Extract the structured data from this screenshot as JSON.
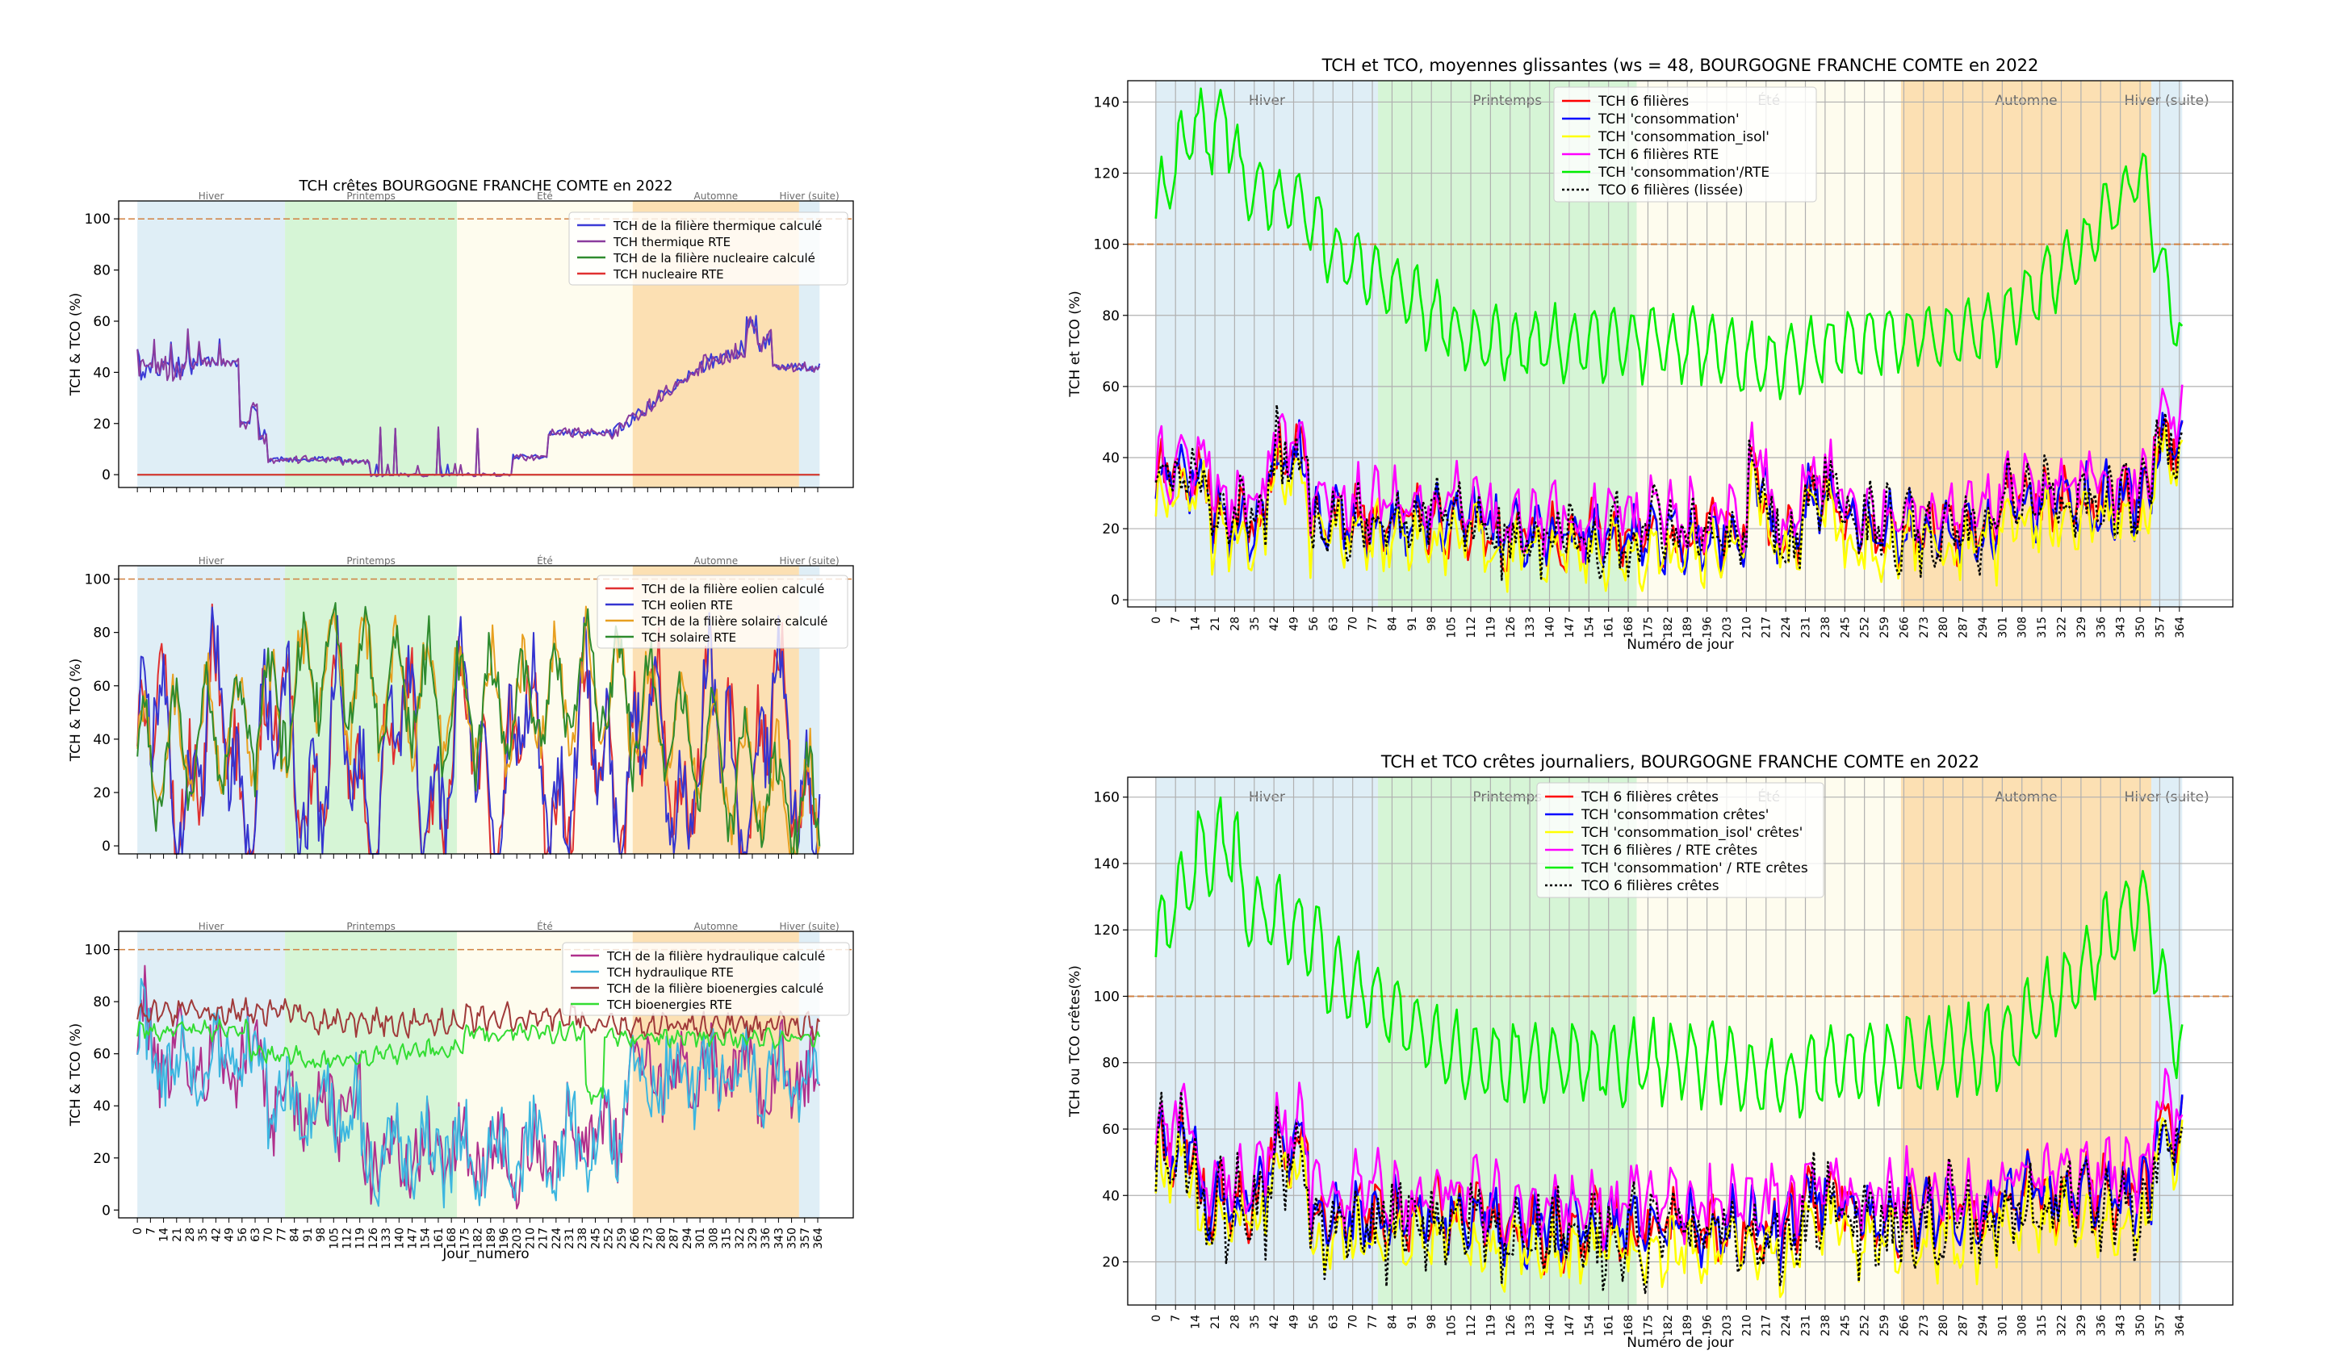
{
  "figure_left_title": "TCH crêtes BOURGOGNE FRANCHE COMTE en 2022",
  "seasons": [
    {
      "name": "Hiver",
      "start": 0,
      "end": 79,
      "color": "#d4e8f3"
    },
    {
      "name": "Printemps",
      "start": 79,
      "end": 171,
      "color": "#c8f2c8"
    },
    {
      "name": "Été",
      "start": 171,
      "end": 265,
      "color": "#fefbe8"
    },
    {
      "name": "Automne",
      "start": 265,
      "end": 354,
      "color": "#fbd59a"
    },
    {
      "name": "Hiver (suite)",
      "start": 354,
      "end": 365,
      "color": "#d4e8f3"
    }
  ],
  "x_ticks": [
    0,
    7,
    14,
    21,
    28,
    35,
    42,
    49,
    56,
    63,
    70,
    77,
    84,
    91,
    98,
    105,
    112,
    119,
    126,
    133,
    140,
    147,
    154,
    161,
    168,
    175,
    182,
    189,
    196,
    203,
    210,
    217,
    224,
    231,
    238,
    245,
    252,
    259,
    266,
    273,
    280,
    287,
    294,
    301,
    308,
    315,
    322,
    329,
    336,
    343,
    350,
    357,
    364
  ],
  "chart_data": [
    {
      "type": "line",
      "title": "",
      "xlabel": "",
      "ylabel": "TCH & TCO (%)",
      "ylim": [
        -5,
        107
      ],
      "yticks": [
        0,
        20,
        40,
        60,
        80,
        100
      ],
      "reference_line": 100,
      "series": [
        {
          "name": "TCH de la filière thermique calculé",
          "color": "#3b3bd6",
          "shape": "thermique"
        },
        {
          "name": "TCH thermique RTE",
          "color": "#8a3c9e",
          "shape": "thermique2"
        },
        {
          "name": "TCH de la filière nucleaire calculé",
          "color": "#2e8b2e",
          "shape": "zero"
        },
        {
          "name": "TCH nucleaire RTE",
          "color": "#e03030",
          "shape": "zero"
        }
      ]
    },
    {
      "type": "line",
      "title": "",
      "xlabel": "",
      "ylabel": "TCH & TCO (%)",
      "ylim": [
        -3,
        105
      ],
      "yticks": [
        0,
        20,
        40,
        60,
        80,
        100
      ],
      "reference_line": 100,
      "series": [
        {
          "name": "TCH de la filière eolien calculé",
          "color": "#e03030",
          "shape": "eolien"
        },
        {
          "name": "TCH eolien RTE",
          "color": "#3535d0",
          "shape": "eolien"
        },
        {
          "name": "TCH de la filière solaire calculé",
          "color": "#e8a020",
          "shape": "solaire"
        },
        {
          "name": "TCH solaire RTE",
          "color": "#2e8b2e",
          "shape": "solaire"
        }
      ]
    },
    {
      "type": "line",
      "title": "",
      "xlabel": "Jour_numero",
      "ylabel": "TCH & TCO (%)",
      "ylim": [
        -3,
        107
      ],
      "yticks": [
        0,
        20,
        40,
        60,
        80,
        100
      ],
      "reference_line": 100,
      "series": [
        {
          "name": "TCH de la filière hydraulique calculé",
          "color": "#b0308c",
          "shape": "hydro"
        },
        {
          "name": "TCH hydraulique RTE",
          "color": "#3cb6e0",
          "shape": "hydro"
        },
        {
          "name": "TCH de la filière bioenergies calculé",
          "color": "#a03a3a",
          "shape": "bio"
        },
        {
          "name": "TCH bioenergies RTE",
          "color": "#33dd33",
          "shape": "bio2"
        }
      ]
    },
    {
      "type": "line",
      "title": "TCH et TCO, moyennes glissantes (ws = 48, BOURGOGNE FRANCHE COMTE en 2022",
      "xlabel": "Numéro de jour",
      "ylabel": "TCH et TCO (%)",
      "ylim": [
        -2,
        146
      ],
      "yticks": [
        0,
        20,
        40,
        60,
        80,
        100,
        120,
        140
      ],
      "reference_line": 100,
      "series": [
        {
          "name": "TCH 6 filières",
          "color": "#ff0000",
          "shape": "low"
        },
        {
          "name": "TCH 'consommation'",
          "color": "#0000ff",
          "shape": "low"
        },
        {
          "name": "TCH 'consommation_isol'",
          "color": "#ffff00",
          "shape": "lowy"
        },
        {
          "name": "TCH 6 filières RTE",
          "color": "#ff00ff",
          "shape": "lowm"
        },
        {
          "name": "TCH 'consommation'/RTE",
          "color": "#00ee00",
          "shape": "cons"
        },
        {
          "name": "TCO 6 filières (lissée)",
          "color": "#000000",
          "shape": "lowk",
          "dotted": true
        }
      ]
    },
    {
      "type": "line",
      "title": "TCH et TCO crêtes journaliers, BOURGOGNE FRANCHE COMTE en 2022",
      "xlabel": "Numéro de jour",
      "ylabel": "TCH ou TCO crêtes(%)",
      "ylim": [
        7,
        166
      ],
      "yticks": [
        20,
        40,
        60,
        80,
        100,
        120,
        140,
        160
      ],
      "reference_line": 100,
      "series": [
        {
          "name": "TCH 6 filières crêtes",
          "color": "#ff0000",
          "shape": "low2"
        },
        {
          "name": "TCH 'consommation crêtes'",
          "color": "#0000ff",
          "shape": "low2"
        },
        {
          "name": "TCH 'consommation_isol' crêtes'",
          "color": "#ffff00",
          "shape": "low2y"
        },
        {
          "name": "TCH 6 filières / RTE crêtes",
          "color": "#ff00ff",
          "shape": "low2m"
        },
        {
          "name": "TCH 'consommation' / RTE crêtes",
          "color": "#00ee00",
          "shape": "cons2"
        },
        {
          "name": "TCO 6 filières crêtes",
          "color": "#000000",
          "shape": "low2k",
          "dotted": true
        }
      ]
    }
  ]
}
